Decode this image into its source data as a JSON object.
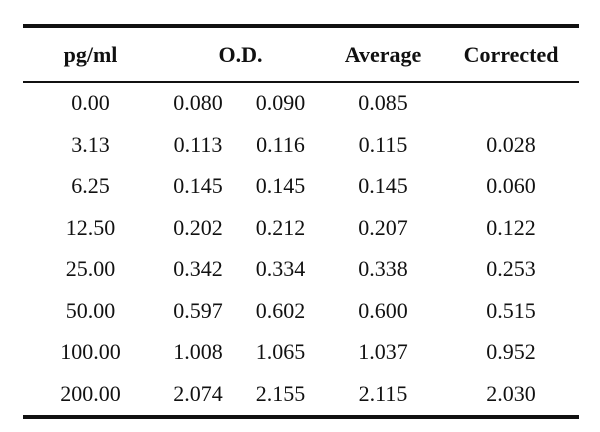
{
  "table": {
    "headers": {
      "pg": "pg/ml",
      "od": "O.D.",
      "average": "Average",
      "corrected": "Corrected"
    },
    "rows": [
      {
        "pg": "0.00",
        "od1": "0.080",
        "od2": "0.090",
        "average": "0.085",
        "corrected": ""
      },
      {
        "pg": "3.13",
        "od1": "0.113",
        "od2": "0.116",
        "average": "0.115",
        "corrected": "0.028"
      },
      {
        "pg": "6.25",
        "od1": "0.145",
        "od2": "0.145",
        "average": "0.145",
        "corrected": "0.060"
      },
      {
        "pg": "12.50",
        "od1": "0.202",
        "od2": "0.212",
        "average": "0.207",
        "corrected": "0.122"
      },
      {
        "pg": "25.00",
        "od1": "0.342",
        "od2": "0.334",
        "average": "0.338",
        "corrected": "0.253"
      },
      {
        "pg": "50.00",
        "od1": "0.597",
        "od2": "0.602",
        "average": "0.600",
        "corrected": "0.515"
      },
      {
        "pg": "100.00",
        "od1": "1.008",
        "od2": "1.065",
        "average": "1.037",
        "corrected": "0.952"
      },
      {
        "pg": "200.00",
        "od1": "2.074",
        "od2": "2.155",
        "average": "2.115",
        "corrected": "2.030"
      }
    ]
  }
}
